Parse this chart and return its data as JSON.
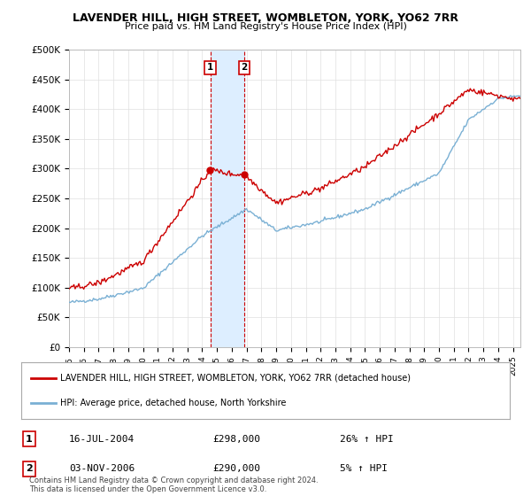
{
  "title": "LAVENDER HILL, HIGH STREET, WOMBLETON, YORK, YO62 7RR",
  "subtitle": "Price paid vs. HM Land Registry's House Price Index (HPI)",
  "ylabel_ticks": [
    "£0",
    "£50K",
    "£100K",
    "£150K",
    "£200K",
    "£250K",
    "£300K",
    "£350K",
    "£400K",
    "£450K",
    "£500K"
  ],
  "ytick_values": [
    0,
    50000,
    100000,
    150000,
    200000,
    250000,
    300000,
    350000,
    400000,
    450000,
    500000
  ],
  "ylim": [
    0,
    500000
  ],
  "xlim_start": 1995.0,
  "xlim_end": 2025.5,
  "sale1_x": 2004.54,
  "sale1_y": 298000,
  "sale2_x": 2006.84,
  "sale2_y": 290000,
  "sale1_label": "1",
  "sale2_label": "2",
  "sale1_date": "16-JUL-2004",
  "sale1_price": "£298,000",
  "sale1_hpi": "26% ↑ HPI",
  "sale2_date": "03-NOV-2006",
  "sale2_price": "£290,000",
  "sale2_hpi": "5% ↑ HPI",
  "legend_line1": "LAVENDER HILL, HIGH STREET, WOMBLETON, YORK, YO62 7RR (detached house)",
  "legend_line2": "HPI: Average price, detached house, North Yorkshire",
  "footnote": "Contains HM Land Registry data © Crown copyright and database right 2024.\nThis data is licensed under the Open Government Licence v3.0.",
  "red_color": "#cc0000",
  "blue_color": "#7ab0d4",
  "highlight_color": "#ddeeff",
  "background_color": "#ffffff",
  "grid_color": "#e0e0e0"
}
